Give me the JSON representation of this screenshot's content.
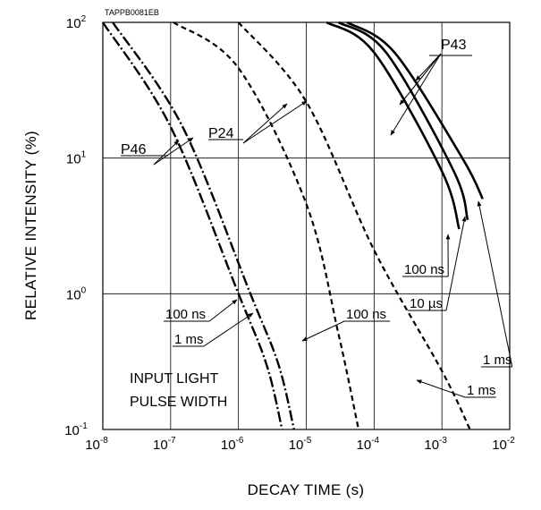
{
  "chart_data": {
    "type": "line",
    "title": "",
    "code": "TAPPB0081EB",
    "xlabel": "DECAY TIME (s)",
    "ylabel": "RELATIVE INTENSITY (%)",
    "x_scale": "log",
    "y_scale": "log",
    "xlim": [
      1e-08,
      0.01
    ],
    "ylim": [
      0.1,
      100
    ],
    "grid": true,
    "x_ticks": [
      {
        "value": 1e-08,
        "base": "10",
        "exp": "-8"
      },
      {
        "value": 1e-07,
        "base": "10",
        "exp": "-7"
      },
      {
        "value": 1e-06,
        "base": "10",
        "exp": "-6"
      },
      {
        "value": 1e-05,
        "base": "10",
        "exp": "-5"
      },
      {
        "value": 0.0001,
        "base": "10",
        "exp": "-4"
      },
      {
        "value": 0.001,
        "base": "10",
        "exp": "-3"
      },
      {
        "value": 0.01,
        "base": "10",
        "exp": "-2"
      }
    ],
    "y_ticks": [
      {
        "value": 100,
        "base": "10",
        "exp": "2"
      },
      {
        "value": 10,
        "base": "10",
        "exp": "1"
      },
      {
        "value": 1,
        "base": "10",
        "exp": "0"
      },
      {
        "value": 0.1,
        "base": "10",
        "exp": "-1"
      }
    ],
    "phosphors": [
      {
        "name": "P46",
        "style": "dash-dot"
      },
      {
        "name": "P24",
        "style": "dashed"
      },
      {
        "name": "P43",
        "style": "solid"
      }
    ],
    "series": [
      {
        "phosphor": "P46",
        "pulse_width": "100 ns",
        "style": "dash-dot",
        "points": [
          [
            1e-08,
            100
          ],
          [
            1e-07,
            17
          ],
          [
            1e-06,
            1.0
          ],
          [
            2.6e-06,
            0.3
          ],
          [
            4.4e-06,
            0.1
          ]
        ]
      },
      {
        "phosphor": "P46",
        "pulse_width": "1 ms",
        "style": "dash-dot",
        "points": [
          [
            1.4e-08,
            100
          ],
          [
            1.5e-07,
            17
          ],
          [
            1.5e-06,
            1.0
          ],
          [
            3.9e-06,
            0.3
          ],
          [
            6.6e-06,
            0.1
          ]
        ]
      },
      {
        "phosphor": "P24",
        "pulse_width": "100 ns",
        "style": "dashed",
        "points": [
          [
            1.1e-07,
            100
          ],
          [
            1e-06,
            46
          ],
          [
            1e-05,
            4.6
          ],
          [
            3e-05,
            0.5
          ],
          [
            5.9e-05,
            0.1
          ]
        ]
      },
      {
        "phosphor": "P24",
        "pulse_width": "1 ms",
        "style": "dashed",
        "points": [
          [
            1e-06,
            100
          ],
          [
            1e-05,
            26
          ],
          [
            0.0001,
            2.1
          ],
          [
            0.001,
            0.27
          ],
          [
            0.0026,
            0.1
          ]
        ]
      },
      {
        "phosphor": "P43",
        "pulse_width": "100 ns",
        "style": "solid",
        "points": [
          [
            2e-05,
            100
          ],
          [
            0.0001,
            60
          ],
          [
            0.001,
            8
          ],
          [
            0.0018,
            3
          ]
        ]
      },
      {
        "phosphor": "P43",
        "pulse_width": "10 µs",
        "style": "solid",
        "points": [
          [
            3e-05,
            100
          ],
          [
            0.00015,
            60
          ],
          [
            0.0015,
            8
          ],
          [
            0.0024,
            3.5
          ]
        ]
      },
      {
        "phosphor": "P43",
        "pulse_width": "1 ms",
        "style": "solid",
        "points": [
          [
            4e-05,
            100
          ],
          [
            0.0002,
            60
          ],
          [
            0.002,
            10
          ],
          [
            0.004,
            5
          ]
        ]
      }
    ],
    "pulse_width_labels": [
      "100 ns",
      "1 ms",
      "100 ns",
      "1 ms",
      "100 ns",
      "10 µs",
      "1 ms"
    ],
    "annotation": {
      "line1": "INPUT LIGHT",
      "line2": "PULSE WIDTH"
    }
  }
}
